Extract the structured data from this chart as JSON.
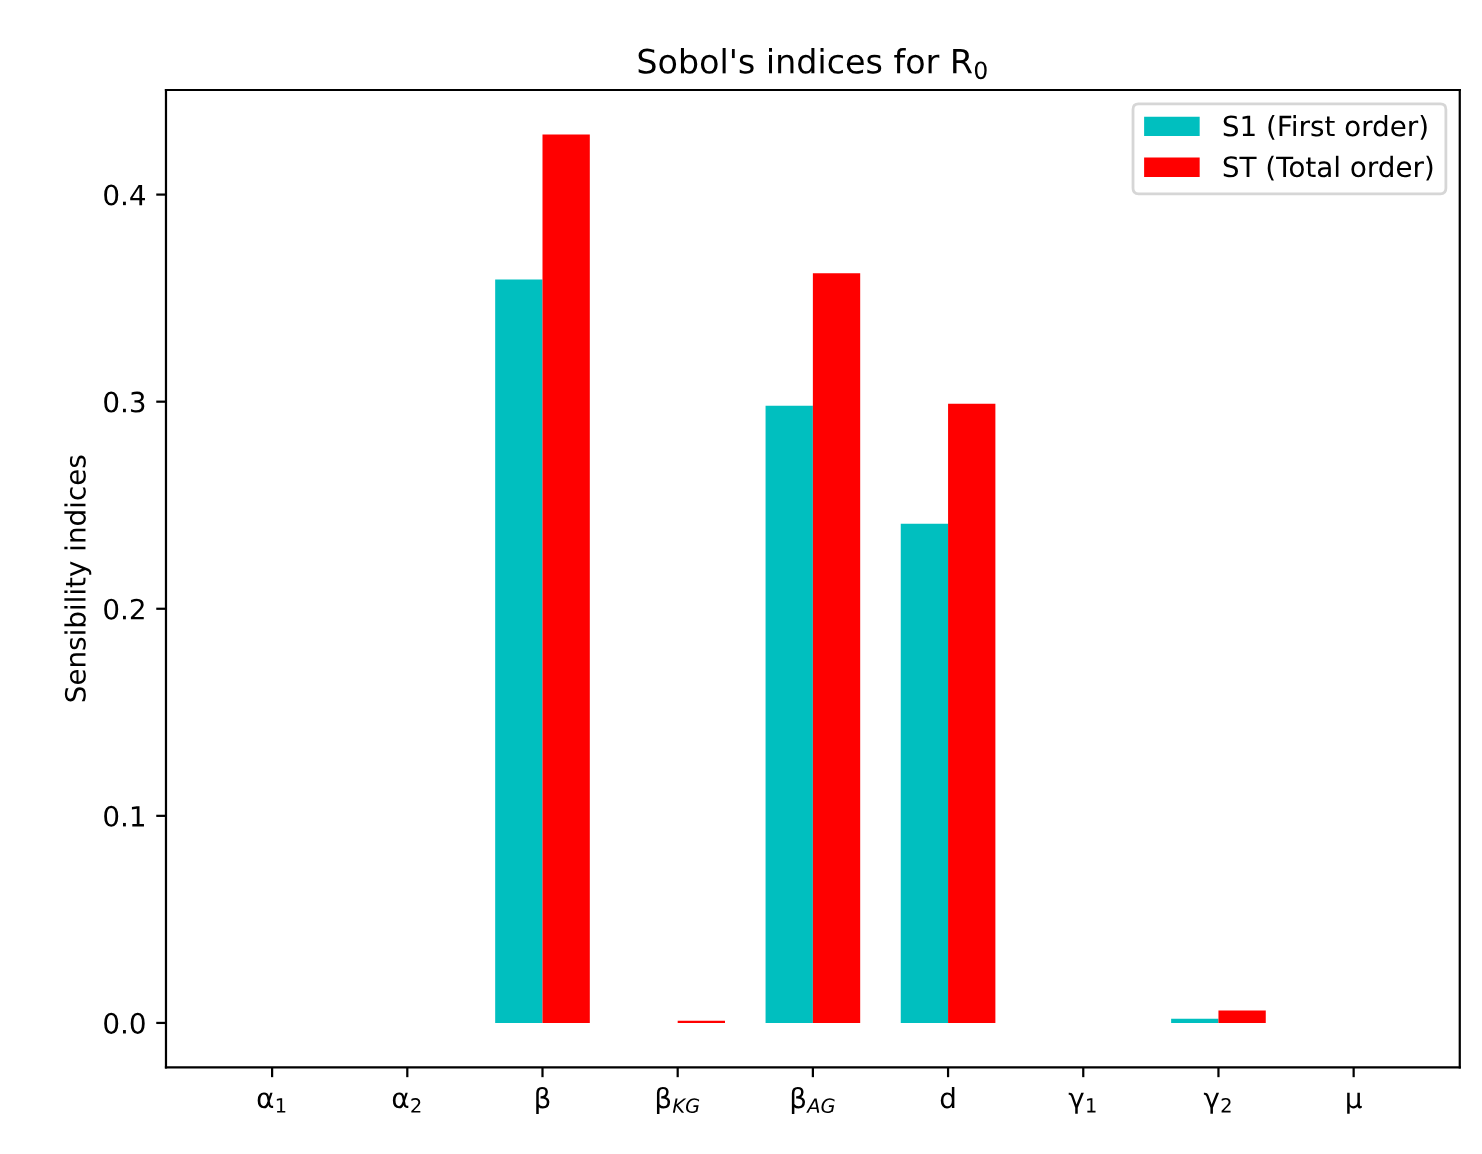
{
  "chart_data": {
    "type": "bar",
    "title": "Sobol's indices for R$_{0}$",
    "ylabel": "Sensibility indices",
    "categories": [
      "α$_{1}$",
      "α$_{2}$",
      "β",
      "β$_{KG}$",
      "β$_{AG}$",
      "d",
      "γ$_{1}$",
      "γ$_{2}$",
      "μ"
    ],
    "series": [
      {
        "name": "S1 (First order)",
        "color": "#00bfbf",
        "values": [
          0,
          0,
          0.359,
          0,
          0.298,
          0.241,
          0,
          0.002,
          0
        ]
      },
      {
        "name": "ST (Total order)",
        "color": "#ff0000",
        "values": [
          0,
          0,
          0.429,
          0.001,
          0.362,
          0.299,
          0,
          0.006,
          0
        ]
      }
    ],
    "ylim": [
      -0.0215,
      0.4505
    ],
    "yticks": [
      {
        "value": 0,
        "label": "0.0"
      },
      0.1,
      0.2,
      0.3,
      0.4
    ],
    "legend": "top right",
    "grid": false
  }
}
